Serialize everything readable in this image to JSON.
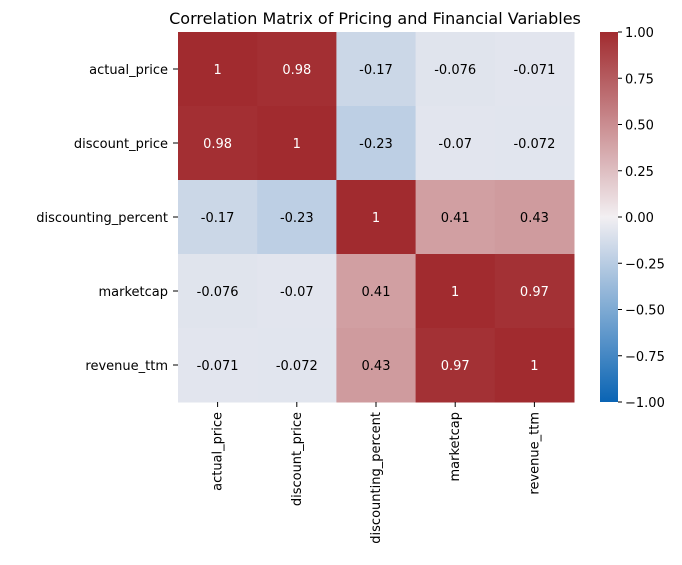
{
  "chart_data": {
    "type": "heatmap",
    "title": "Correlation Matrix of Pricing and Financial Variables",
    "row_labels": [
      "actual_price",
      "discount_price",
      "discounting_percent",
      "marketcap",
      "revenue_ttm"
    ],
    "col_labels": [
      "actual_price",
      "discount_price",
      "discounting_percent",
      "marketcap",
      "revenue_ttm"
    ],
    "values": [
      [
        1,
        0.98,
        -0.17,
        -0.076,
        -0.071
      ],
      [
        0.98,
        1,
        -0.23,
        -0.07,
        -0.072
      ],
      [
        -0.17,
        -0.23,
        1,
        0.41,
        0.43
      ],
      [
        -0.076,
        -0.07,
        0.41,
        1,
        0.97
      ],
      [
        -0.071,
        -0.072,
        0.43,
        0.97,
        1
      ]
    ],
    "cell_labels": [
      [
        "1",
        "0.98",
        "-0.17",
        "-0.076",
        "-0.071"
      ],
      [
        "0.98",
        "1",
        "-0.23",
        "-0.07",
        "-0.072"
      ],
      [
        "-0.17",
        "-0.23",
        "1",
        "0.41",
        "0.43"
      ],
      [
        "-0.076",
        "-0.07",
        "0.41",
        "1",
        "0.97"
      ],
      [
        "-0.071",
        "-0.072",
        "0.43",
        "0.97",
        "1"
      ]
    ],
    "colorbar": {
      "vmin": -1.0,
      "vmax": 1.0,
      "colormap": "vlag",
      "ticks": [
        1.0,
        0.75,
        0.5,
        0.25,
        0.0,
        -0.25,
        -0.5,
        -0.75,
        -1.0
      ],
      "tick_labels": [
        "1.00",
        "0.75",
        "0.50",
        "0.25",
        "0.00",
        "−0.25",
        "−0.50",
        "−0.75",
        "−1.00"
      ],
      "placement": "right"
    },
    "colors": {
      "low": "#0a64b4",
      "mid": "#f2eff2",
      "high": "#a12b2f"
    }
  }
}
